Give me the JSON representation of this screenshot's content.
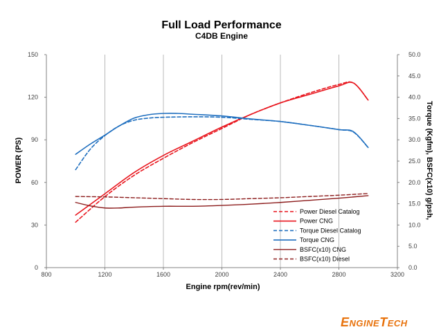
{
  "colors": {
    "power_red": "#e8141c",
    "torque_blue": "#1f6fbf",
    "bsfc_brown": "#8b1a1a",
    "logo_orange": "#e8720c",
    "logo_dark": "#333333"
  },
  "logo": {
    "part1": "E",
    "part2": "NGINE",
    "part3": "T",
    "part4": "ECH"
  },
  "chart_data": {
    "type": "line",
    "title": "Full Load Performance",
    "subtitle": "C4DB Engine",
    "xlabel": "Engine rpm(rev/min)",
    "ylabel": "POWER (PS)",
    "y2label": "Torque (Kgfm), BSFC(x10) g/psh,",
    "xlim": [
      800,
      3200
    ],
    "ylim": [
      0,
      150
    ],
    "y2lim": [
      0,
      50
    ],
    "x_ticks": [
      "800",
      "1200",
      "1600",
      "2000",
      "2400",
      "2800",
      "3200"
    ],
    "y_ticks": [
      "0",
      "30",
      "60",
      "90",
      "120",
      "150"
    ],
    "y2_ticks": [
      "0.0",
      "5.0",
      "10.0",
      "15.0",
      "20.0",
      "25.0",
      "30.0",
      "35.0",
      "40.0",
      "45.0",
      "50.0"
    ],
    "grid": "vertical",
    "legend_position": "bottom-right",
    "series": [
      {
        "name": "Power Diesel Catalog",
        "axis": "left",
        "color": "#e8141c",
        "dash": true,
        "width": 1.6,
        "x": [
          1000,
          1200,
          1400,
          1600,
          1800,
          2000,
          2200,
          2400,
          2600,
          2800,
          2900,
          3000
        ],
        "y": [
          32,
          50,
          65,
          77,
          88,
          98,
          108,
          116,
          123,
          129,
          130,
          118
        ]
      },
      {
        "name": "Power CNG",
        "axis": "left",
        "color": "#e8141c",
        "dash": false,
        "width": 1.6,
        "x": [
          1000,
          1200,
          1400,
          1600,
          1800,
          2000,
          2200,
          2400,
          2600,
          2800,
          2900,
          3000
        ],
        "y": [
          37,
          52,
          67,
          79,
          89,
          99,
          108,
          116,
          122,
          128,
          130,
          118
        ]
      },
      {
        "name": "Torque Diesel Catalog",
        "axis": "right",
        "color": "#1f6fbf",
        "dash": true,
        "width": 1.6,
        "x": [
          1000,
          1100,
          1200,
          1300,
          1400,
          1500,
          1600,
          1800,
          2000,
          2200,
          2400,
          2600,
          2800,
          2900,
          3000
        ],
        "y": [
          23.0,
          27.8,
          31.0,
          33.3,
          34.6,
          35.1,
          35.3,
          35.4,
          35.3,
          34.8,
          34.3,
          33.4,
          32.4,
          31.8,
          28.2
        ]
      },
      {
        "name": "Torque CNG",
        "axis": "right",
        "color": "#1f6fbf",
        "dash": false,
        "width": 1.6,
        "x": [
          1000,
          1100,
          1200,
          1300,
          1400,
          1500,
          1600,
          1700,
          1800,
          2000,
          2200,
          2400,
          2600,
          2800,
          2900,
          3000
        ],
        "y": [
          26.6,
          29.0,
          31.1,
          33.3,
          35.1,
          35.9,
          36.2,
          36.2,
          36.0,
          35.6,
          34.9,
          34.3,
          33.4,
          32.4,
          31.9,
          28.2
        ]
      },
      {
        "name": "BSFC(x10) CNG",
        "axis": "right",
        "color": "#8b1a1a",
        "dash": false,
        "width": 1.4,
        "x": [
          1000,
          1100,
          1200,
          1300,
          1400,
          1600,
          1800,
          2000,
          2200,
          2400,
          2600,
          2800,
          3000
        ],
        "y": [
          15.3,
          14.5,
          14.0,
          14.0,
          14.2,
          14.4,
          14.4,
          14.6,
          14.9,
          15.3,
          15.8,
          16.3,
          16.9
        ]
      },
      {
        "name": "BSFC(x10) Diesel",
        "axis": "right",
        "color": "#8b1a1a",
        "dash": true,
        "width": 1.4,
        "x": [
          1000,
          1200,
          1400,
          1600,
          1800,
          2000,
          2200,
          2400,
          2600,
          2800,
          3000
        ],
        "y": [
          16.7,
          16.6,
          16.4,
          16.2,
          16.0,
          16.0,
          16.2,
          16.4,
          16.7,
          17.0,
          17.4
        ]
      }
    ],
    "legend": [
      "Power Diesel Catalog",
      "Power CNG",
      "Torque Diesel Catalog",
      "Torque CNG",
      "BSFC(x10) CNG",
      "BSFC(x10) Diesel"
    ]
  }
}
